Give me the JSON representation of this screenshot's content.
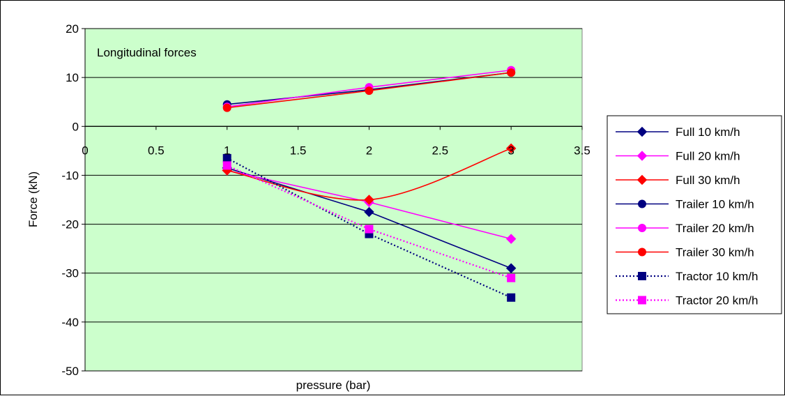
{
  "chart_data": {
    "type": "line",
    "annotation": "Longitudinal forces",
    "xlabel": "pressure (bar)",
    "ylabel": "Force (kN)",
    "xlim": [
      0,
      3.5
    ],
    "ylim": [
      -50,
      20
    ],
    "x_ticks": [
      "0",
      "0.5",
      "1",
      "1.5",
      "2",
      "2.5",
      "3",
      "3.5"
    ],
    "y_ticks": [
      "20",
      "10",
      "0",
      "-10",
      "-20",
      "-30",
      "-40",
      "-50"
    ],
    "plot_background": "#ccffcc",
    "grid": "horizontal",
    "legend_position": "right",
    "series": [
      {
        "name": "Full 10 km/h",
        "color": "#000080",
        "marker": "diamond",
        "dash": "solid",
        "smooth": false,
        "x": [
          1,
          2,
          3
        ],
        "y": [
          -8.5,
          -17.5,
          -29
        ]
      },
      {
        "name": "Full 20 km/h",
        "color": "#ff00ff",
        "marker": "diamond",
        "dash": "solid",
        "smooth": false,
        "x": [
          1,
          2,
          3
        ],
        "y": [
          -9,
          -15.5,
          -23
        ]
      },
      {
        "name": "Full 30 km/h",
        "color": "#ff0000",
        "marker": "diamond",
        "dash": "solid",
        "smooth": true,
        "x": [
          1,
          2,
          3
        ],
        "y": [
          -9,
          -15,
          -4.5
        ]
      },
      {
        "name": "Trailer 10 km/h",
        "color": "#000080",
        "marker": "circle",
        "dash": "solid",
        "smooth": false,
        "x": [
          1,
          2,
          3
        ],
        "y": [
          4.5,
          7.5,
          11
        ]
      },
      {
        "name": "Trailer 20 km/h",
        "color": "#ff00ff",
        "marker": "circle",
        "dash": "solid",
        "smooth": false,
        "x": [
          1,
          2,
          3
        ],
        "y": [
          4,
          8,
          11.5
        ]
      },
      {
        "name": "Trailer 30 km/h",
        "color": "#ff0000",
        "marker": "circle",
        "dash": "solid",
        "smooth": false,
        "x": [
          1,
          2,
          3
        ],
        "y": [
          3.8,
          7.3,
          11
        ]
      },
      {
        "name": "Tractor 10 km/h",
        "color": "#000080",
        "marker": "square",
        "dash": "dotted",
        "smooth": false,
        "x": [
          1,
          2,
          3
        ],
        "y": [
          -6.5,
          -22,
          -35
        ]
      },
      {
        "name": "Tractor 20 km/h",
        "color": "#ff00ff",
        "marker": "square",
        "dash": "dotted",
        "smooth": false,
        "x": [
          1,
          2,
          3
        ],
        "y": [
          -8,
          -21,
          -31
        ]
      }
    ]
  }
}
